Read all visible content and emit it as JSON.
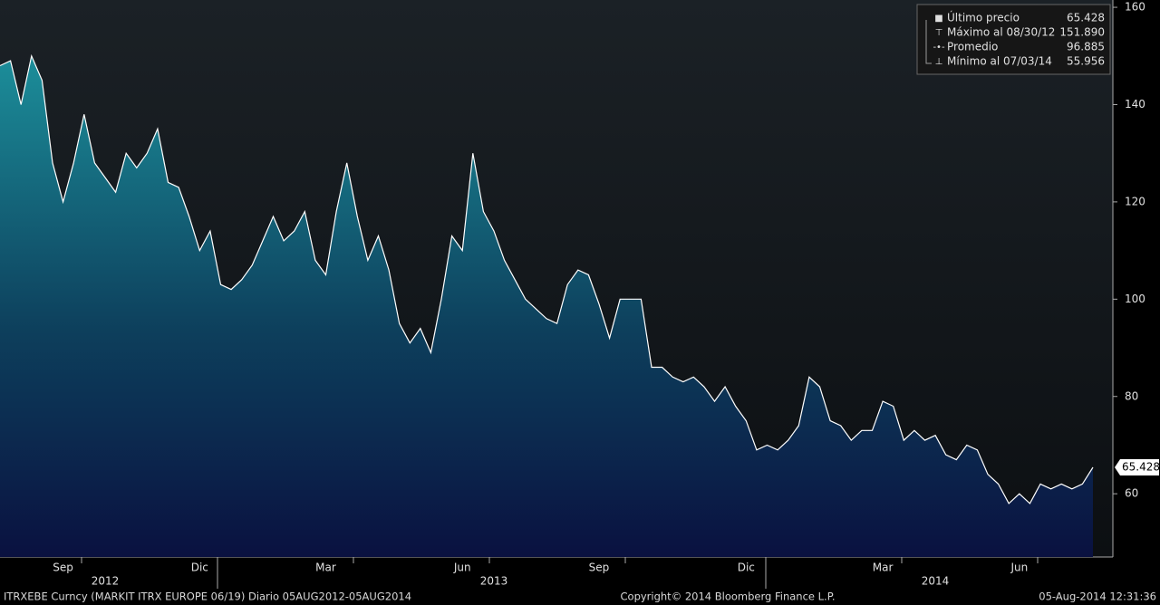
{
  "chart_data": {
    "type": "area",
    "ylim": [
      47,
      161.5
    ],
    "yticks": [
      60,
      80,
      100,
      120,
      140,
      160
    ],
    "categories": [
      null,
      null,
      null,
      null,
      null,
      null,
      "Sep",
      null,
      null,
      null,
      null,
      null,
      null,
      null,
      null,
      null,
      null,
      null,
      null,
      "Dic",
      null,
      null,
      null,
      null,
      null,
      null,
      null,
      null,
      null,
      null,
      null,
      "Mar",
      null,
      null,
      null,
      null,
      null,
      null,
      null,
      null,
      null,
      null,
      null,
      null,
      "Jun",
      null,
      null,
      null,
      null,
      null,
      null,
      null,
      null,
      null,
      null,
      null,
      null,
      "Sep",
      null,
      null,
      null,
      null,
      null,
      null,
      null,
      null,
      null,
      null,
      null,
      null,
      null,
      "Dic",
      null,
      null,
      null,
      null,
      null,
      null,
      null,
      null,
      null,
      null,
      null,
      null,
      "Mar",
      null,
      null,
      null,
      null,
      null,
      null,
      null,
      null,
      null,
      null,
      null,
      null,
      "Jun",
      null,
      null,
      null,
      null,
      null,
      null,
      null
    ],
    "year_categories": [
      null,
      null,
      null,
      null,
      null,
      null,
      null,
      null,
      null,
      null,
      "2012",
      null,
      null,
      null,
      null,
      null,
      null,
      null,
      null,
      null,
      null,
      null,
      null,
      null,
      null,
      null,
      null,
      null,
      null,
      null,
      null,
      null,
      null,
      null,
      null,
      null,
      null,
      null,
      null,
      null,
      null,
      null,
      null,
      null,
      null,
      null,
      null,
      "2013",
      null,
      null,
      null,
      null,
      null,
      null,
      null,
      null,
      null,
      null,
      null,
      null,
      null,
      null,
      null,
      null,
      null,
      null,
      null,
      null,
      null,
      null,
      null,
      null,
      null,
      null,
      null,
      null,
      null,
      null,
      null,
      null,
      null,
      null,
      null,
      null,
      null,
      null,
      null,
      null,
      null,
      "2014",
      null,
      null,
      null,
      null,
      null,
      null,
      null,
      null,
      null,
      null,
      null,
      null,
      null,
      null,
      null
    ],
    "series": [
      {
        "name": "Último precio",
        "color": "#ffffff",
        "values": [
          148,
          149,
          140,
          150,
          145,
          128,
          120,
          128,
          138,
          128,
          125,
          122,
          130,
          127,
          130,
          135,
          124,
          123,
          117,
          110,
          114,
          103,
          102,
          104,
          107,
          112,
          117,
          112,
          114,
          118,
          108,
          105,
          118,
          128,
          117,
          108,
          113,
          106,
          95,
          91,
          94,
          89,
          100,
          113,
          110,
          130,
          118,
          114,
          108,
          104,
          100,
          98,
          96,
          95,
          103,
          106,
          105,
          99,
          92,
          100,
          100,
          100,
          86,
          86,
          84,
          83,
          84,
          82,
          79,
          82,
          78,
          75,
          69,
          70,
          69,
          71,
          74,
          84,
          82,
          75,
          74,
          71,
          73,
          73,
          79,
          78,
          71,
          73,
          71,
          72,
          68,
          67,
          70,
          69,
          64,
          62,
          58,
          60,
          58,
          62,
          61,
          62,
          61,
          62,
          65.428
        ]
      }
    ],
    "legend": [
      {
        "label": "Último precio",
        "value": 65.428
      },
      {
        "label": "Máximo al 08/30/12",
        "value": 151.89,
        "value_label": "151.890"
      },
      {
        "label": "Promedio",
        "value": 96.885
      },
      {
        "label": "Mínimo al 07/03/14",
        "value": 55.956
      }
    ],
    "footer_left": "ITRXEBE Curncy (MARKIT ITRX EUROPE 06/19)  Diario 05AUG2012-05AUG2014",
    "footer_center": "Copyright© 2014 Bloomberg Finance L.P.",
    "footer_right": "05-Aug-2014 12:31:36"
  }
}
